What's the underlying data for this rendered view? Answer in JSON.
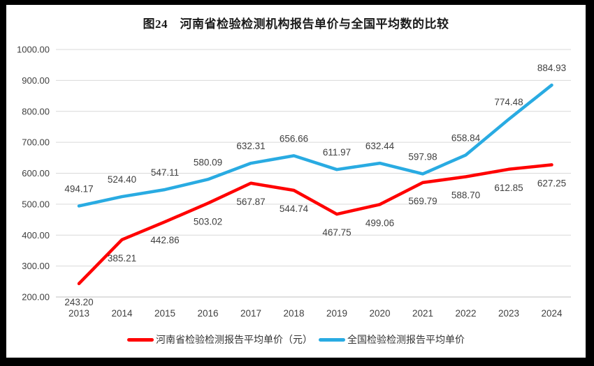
{
  "title": "图24　河南省检验检测机构报告单价与全国平均数的比较",
  "chart_data": {
    "type": "line",
    "categories": [
      "2013",
      "2014",
      "2015",
      "2016",
      "2017",
      "2018",
      "2019",
      "2020",
      "2021",
      "2022",
      "2023",
      "2024"
    ],
    "series": [
      {
        "name": "河南省检验检测报告平均单价（元）",
        "color": "#FF0000",
        "values": [
          243.2,
          385.21,
          442.86,
          503.02,
          567.87,
          544.74,
          467.75,
          499.06,
          569.79,
          588.7,
          612.85,
          627.25
        ],
        "data_label_position": "below"
      },
      {
        "name": "全国检验检测报告平均单价",
        "color": "#29ABE2",
        "values": [
          494.17,
          524.4,
          547.11,
          580.09,
          632.31,
          656.66,
          611.97,
          632.44,
          597.98,
          658.84,
          774.48,
          884.93
        ],
        "data_label_position": "above"
      }
    ],
    "title": "图24　河南省检验检测机构报告单价与全国平均数的比较",
    "xlabel": "",
    "ylabel": "",
    "ylim": [
      200,
      1000
    ],
    "ytick_step": 100,
    "ytick_labels": [
      "200.00",
      "300.00",
      "400.00",
      "500.00",
      "600.00",
      "700.00",
      "800.00",
      "900.00",
      "1000.00"
    ],
    "grid": "horizontal",
    "data_labels_shown": true,
    "legend_position": "bottom"
  },
  "colors": {
    "frame": "#000000",
    "background": "#FFFFFF",
    "gridline": "#D9D9D9",
    "baseline": "#BFBFBF",
    "axis_text": "#404040",
    "label_text": "#404040",
    "title_text": "#1A1A1A",
    "legend_text": "#333333"
  }
}
